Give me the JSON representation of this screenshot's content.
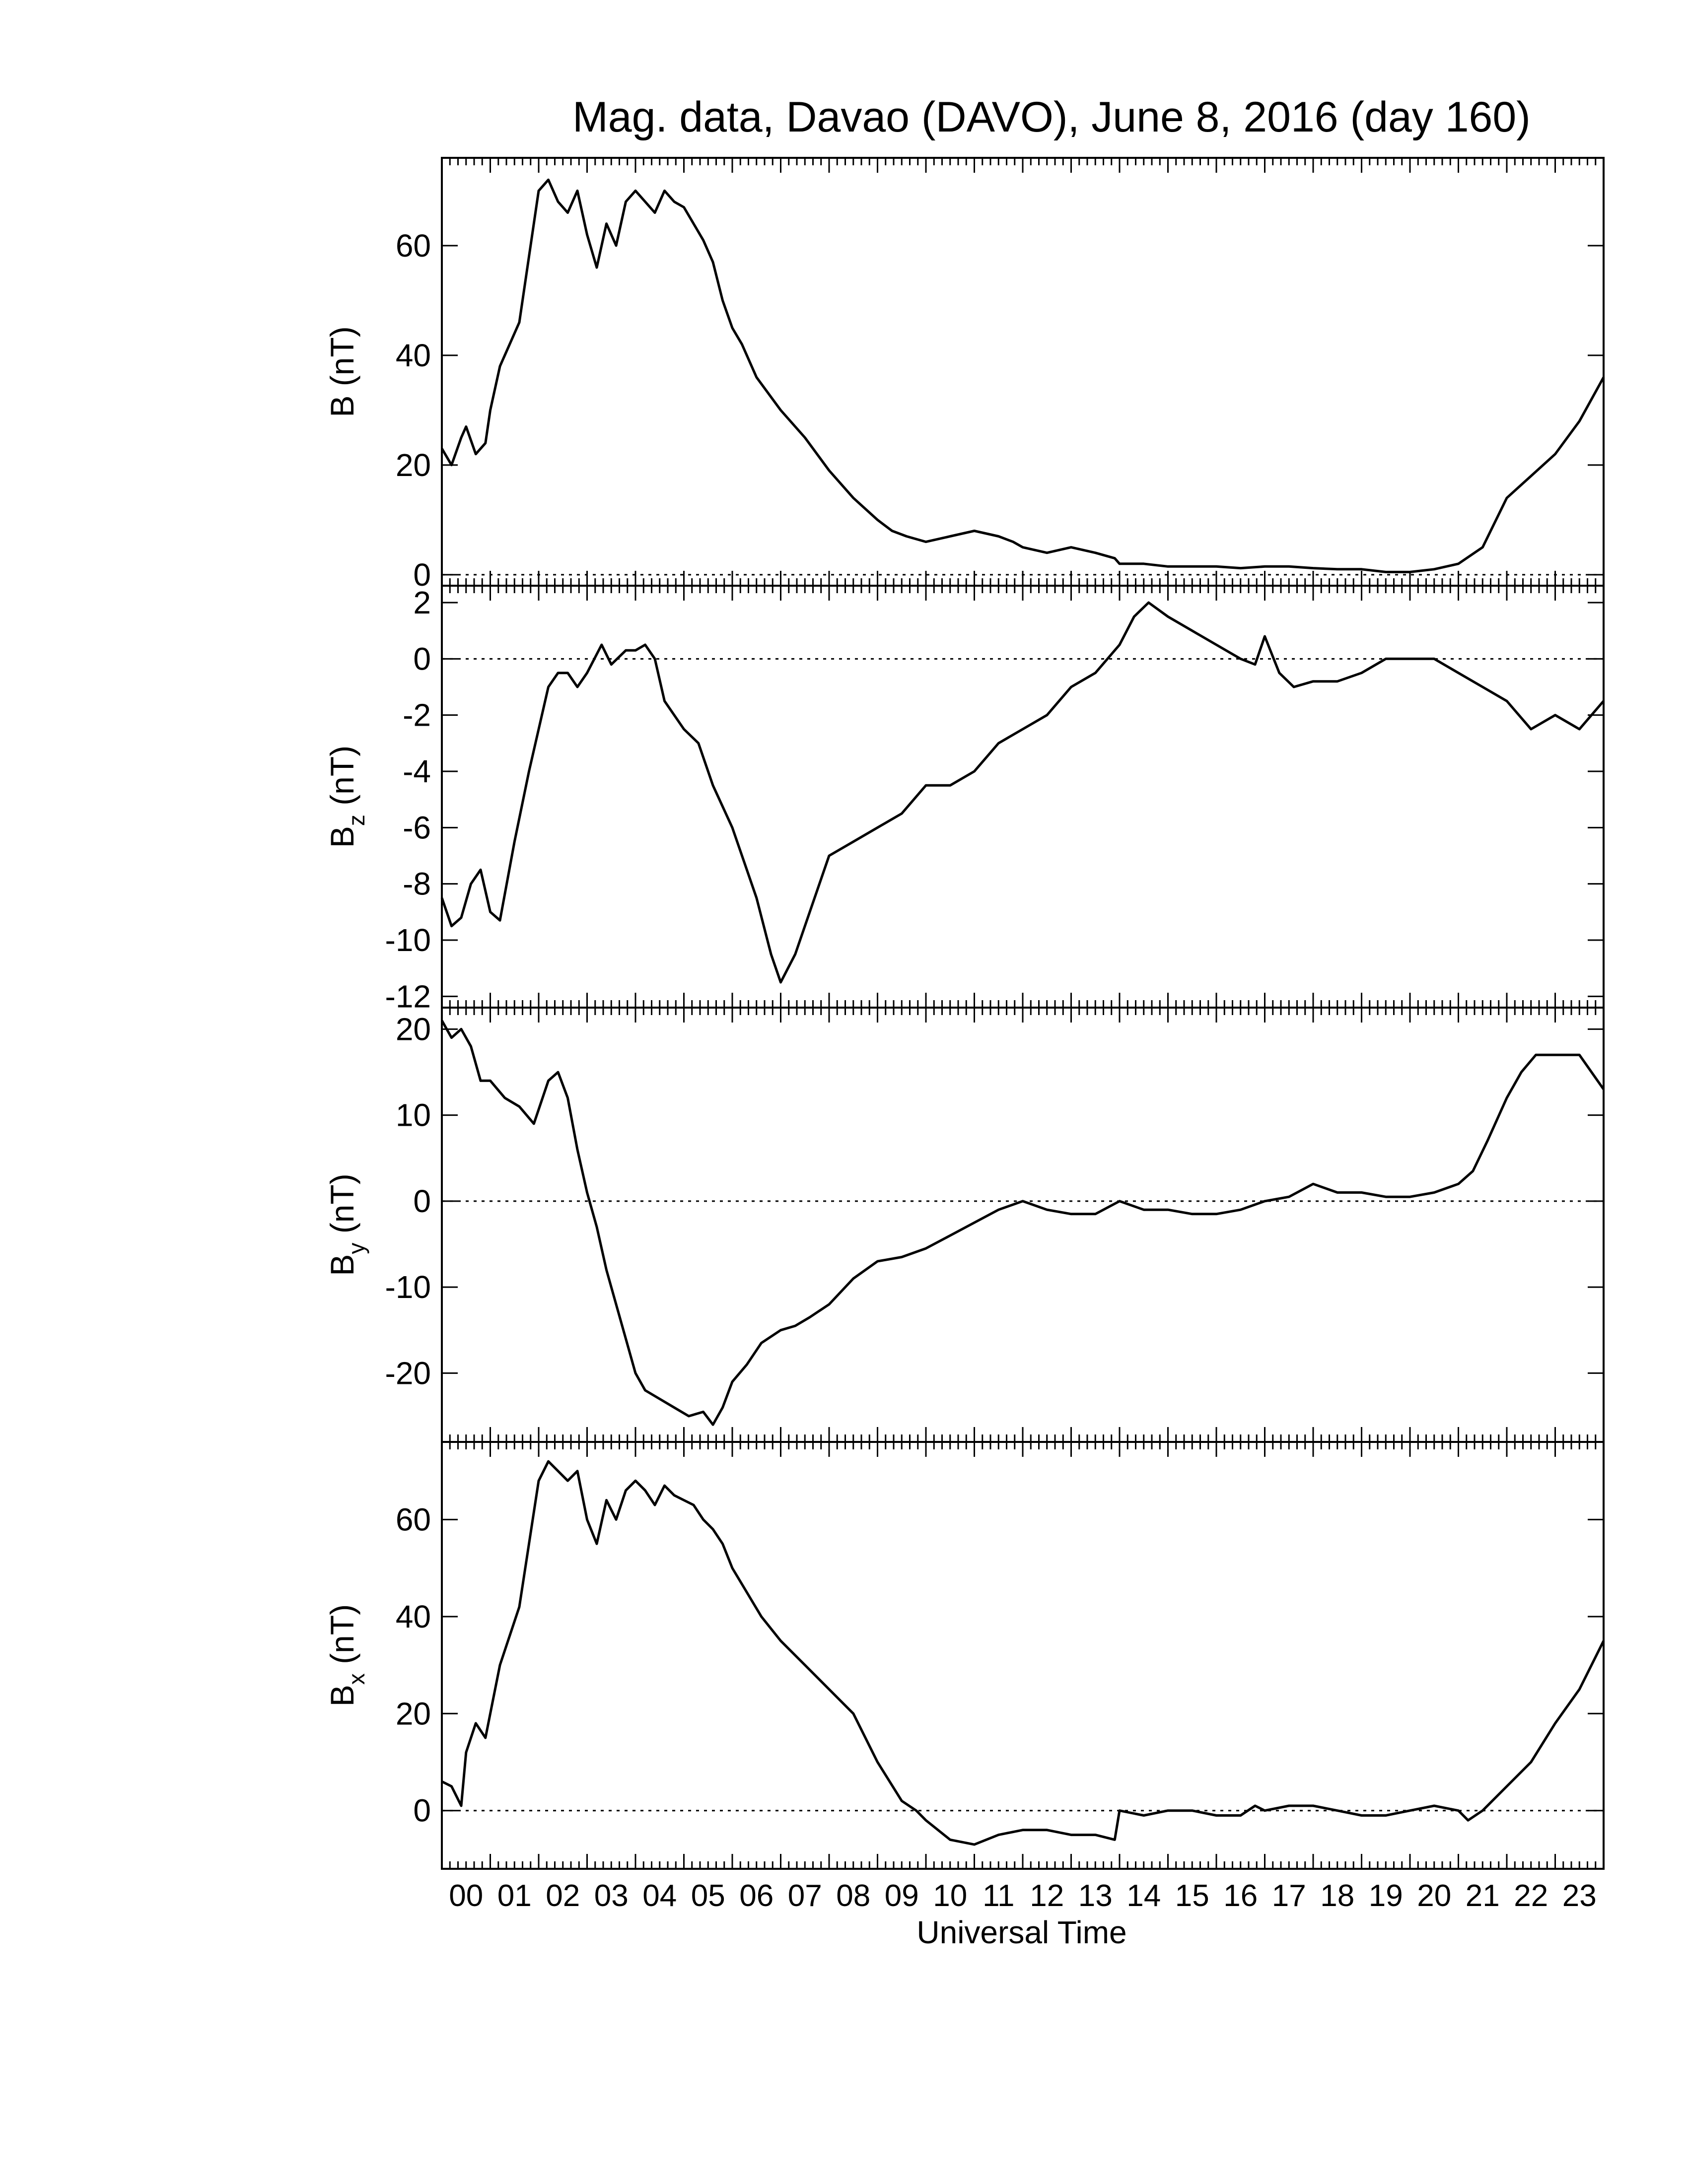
{
  "chart_data": {
    "title": "Mag. data, Davao (DAVO), June 8, 2016 (day 160)",
    "xlabel": "Universal Time",
    "x_ticks": [
      "00",
      "01",
      "02",
      "03",
      "04",
      "05",
      "06",
      "07",
      "08",
      "09",
      "10",
      "11",
      "12",
      "13",
      "14",
      "15",
      "16",
      "17",
      "18",
      "19",
      "20",
      "21",
      "22",
      "23"
    ],
    "x_range": [
      0,
      24
    ],
    "x_unit": "hours UT",
    "line_color": "#000000",
    "zero_line": "dotted",
    "panels": [
      {
        "type": "line",
        "ylabel": "B (nT)",
        "ylabel_main": "B",
        "ylabel_sub": "",
        "ylabel_unit": " (nT)",
        "ylim": [
          -2,
          76
        ],
        "yticks": [
          0,
          20,
          40,
          60
        ],
        "ytick_labels": [
          "0",
          "20",
          "40",
          "60"
        ],
        "series": [
          {
            "x": [
              0,
              0.2,
              0.4,
              0.5,
              0.7,
              0.9,
              1.0,
              1.2,
              1.4,
              1.6,
              1.8,
              2.0,
              2.2,
              2.4,
              2.6,
              2.8,
              3.0,
              3.2,
              3.4,
              3.6,
              3.8,
              4.0,
              4.2,
              4.4,
              4.6,
              4.8,
              5.0,
              5.2,
              5.4,
              5.6,
              5.8,
              6.0,
              6.2,
              6.5,
              7.0,
              7.5,
              8.0,
              8.5,
              9.0,
              9.3,
              9.6,
              10.0,
              10.5,
              11.0,
              11.5,
              11.8,
              12.0,
              12.5,
              13.0,
              13.5,
              13.9,
              14.0,
              14.5,
              15.0,
              15.5,
              16.0,
              16.5,
              17.0,
              17.5,
              18.0,
              18.5,
              19.0,
              19.5,
              20.0,
              20.5,
              21.0,
              21.5,
              22.0,
              22.5,
              23.0,
              23.5,
              24.0
            ],
            "y": [
              23,
              20,
              25,
              27,
              22,
              24,
              30,
              38,
              42,
              46,
              58,
              70,
              72,
              68,
              66,
              70,
              62,
              56,
              64,
              60,
              68,
              70,
              68,
              66,
              70,
              68,
              67,
              64,
              61,
              57,
              50,
              45,
              42,
              36,
              30,
              25,
              19,
              14,
              10,
              8,
              7,
              6,
              7,
              8,
              7,
              6,
              5,
              4,
              5,
              4,
              3,
              2,
              2,
              1.5,
              1.5,
              1.5,
              1.2,
              1.5,
              1.5,
              1.2,
              1,
              1,
              0.5,
              0.5,
              1,
              2,
              5,
              14,
              18,
              22,
              28,
              36
            ]
          }
        ]
      },
      {
        "type": "line",
        "ylabel": "Bz (nT)",
        "ylabel_main": "B",
        "ylabel_sub": "z",
        "ylabel_unit": " (nT)",
        "ylim": [
          -12.4,
          2.6
        ],
        "yticks": [
          -12,
          -10,
          -8,
          -6,
          -4,
          -2,
          0,
          2
        ],
        "ytick_labels": [
          "-12",
          "-10",
          "-8",
          "-6",
          "-4",
          "-2",
          "0",
          "2"
        ],
        "series": [
          {
            "x": [
              0,
              0.2,
              0.4,
              0.6,
              0.8,
              1.0,
              1.2,
              1.5,
              1.8,
              2.0,
              2.2,
              2.4,
              2.6,
              2.8,
              3.0,
              3.3,
              3.5,
              3.8,
              4.0,
              4.2,
              4.4,
              4.6,
              5.0,
              5.3,
              5.6,
              6.0,
              6.3,
              6.5,
              6.8,
              7.0,
              7.3,
              7.6,
              8.0,
              8.5,
              9.0,
              9.5,
              10.0,
              10.5,
              11.0,
              11.5,
              12.0,
              12.5,
              13.0,
              13.5,
              14.0,
              14.3,
              14.6,
              15.0,
              15.5,
              16.0,
              16.5,
              16.8,
              17.0,
              17.3,
              17.6,
              18.0,
              18.5,
              19.0,
              19.5,
              20.0,
              20.5,
              21.0,
              21.5,
              22.0,
              22.5,
              23.0,
              23.5,
              24.0
            ],
            "y": [
              -8.5,
              -9.5,
              -9.2,
              -8.0,
              -7.5,
              -9.0,
              -9.3,
              -6.5,
              -4.0,
              -2.5,
              -1.0,
              -0.5,
              -0.5,
              -1.0,
              -0.5,
              0.5,
              -0.2,
              0.3,
              0.3,
              0.5,
              0.0,
              -1.5,
              -2.5,
              -3.0,
              -4.5,
              -6.0,
              -7.5,
              -8.5,
              -10.5,
              -11.5,
              -10.5,
              -9.0,
              -7.0,
              -6.5,
              -6.0,
              -5.5,
              -4.5,
              -4.5,
              -4.0,
              -3.0,
              -2.5,
              -2.0,
              -1.0,
              -0.5,
              0.5,
              1.5,
              2.0,
              1.5,
              1.0,
              0.5,
              0.0,
              -0.2,
              0.8,
              -0.5,
              -1.0,
              -0.8,
              -0.8,
              -0.5,
              0.0,
              0.0,
              0.0,
              -0.5,
              -1.0,
              -1.5,
              -2.5,
              -2.0,
              -2.5,
              -1.5
            ]
          }
        ]
      },
      {
        "type": "line",
        "ylabel": "By (nT)",
        "ylabel_main": "B",
        "ylabel_sub": "y",
        "ylabel_unit": " (nT)",
        "ylim": [
          -28,
          22.5
        ],
        "yticks": [
          -20,
          -10,
          0,
          10,
          20
        ],
        "ytick_labels": [
          "-20",
          "-10",
          "0",
          "10",
          "20"
        ],
        "series": [
          {
            "x": [
              0,
              0.2,
              0.4,
              0.6,
              0.8,
              1.0,
              1.3,
              1.6,
              1.9,
              2.2,
              2.4,
              2.6,
              2.8,
              3.0,
              3.2,
              3.4,
              3.6,
              3.8,
              4.0,
              4.2,
              4.5,
              4.8,
              5.1,
              5.4,
              5.6,
              5.8,
              6.0,
              6.3,
              6.6,
              7.0,
              7.3,
              7.6,
              8.0,
              8.5,
              9.0,
              9.5,
              10.0,
              10.5,
              11.0,
              11.5,
              12.0,
              12.5,
              13.0,
              13.5,
              14.0,
              14.5,
              15.0,
              15.5,
              16.0,
              16.5,
              17.0,
              17.5,
              18.0,
              18.5,
              19.0,
              19.5,
              20.0,
              20.5,
              21.0,
              21.3,
              21.6,
              22.0,
              22.3,
              22.6,
              23.0,
              23.5,
              24.0
            ],
            "y": [
              21,
              19,
              20,
              18,
              14,
              14,
              12,
              11,
              9,
              14,
              15,
              12,
              6,
              1,
              -3,
              -8,
              -12,
              -16,
              -20,
              -22,
              -23,
              -24,
              -25,
              -24.5,
              -26,
              -24,
              -21,
              -19,
              -16.5,
              -15,
              -14.5,
              -13.5,
              -12,
              -9,
              -7,
              -6.5,
              -5.5,
              -4,
              -2.5,
              -1,
              0,
              -1,
              -1.5,
              -1.5,
              0,
              -1,
              -1,
              -1.5,
              -1.5,
              -1,
              0,
              0.5,
              2,
              1,
              1,
              0.5,
              0.5,
              1,
              2,
              3.5,
              7,
              12,
              15,
              17,
              17,
              17,
              13
            ]
          }
        ]
      },
      {
        "type": "line",
        "ylabel": "Bx (nT)",
        "ylabel_main": "B",
        "ylabel_sub": "x",
        "ylabel_unit": " (nT)",
        "ylim": [
          -12,
          76
        ],
        "yticks": [
          0,
          20,
          40,
          60
        ],
        "ytick_labels": [
          "0",
          "20",
          "40",
          "60"
        ],
        "series": [
          {
            "x": [
              0,
              0.2,
              0.4,
              0.5,
              0.7,
              0.9,
              1.0,
              1.2,
              1.4,
              1.6,
              1.8,
              2.0,
              2.2,
              2.4,
              2.6,
              2.8,
              3.0,
              3.2,
              3.4,
              3.6,
              3.8,
              4.0,
              4.2,
              4.4,
              4.6,
              4.8,
              5.0,
              5.2,
              5.4,
              5.6,
              5.8,
              6.0,
              6.3,
              6.6,
              7.0,
              7.5,
              8.0,
              8.5,
              9.0,
              9.5,
              9.8,
              10.0,
              10.5,
              11.0,
              11.5,
              12.0,
              12.5,
              13.0,
              13.5,
              13.9,
              14.0,
              14.5,
              15.0,
              15.5,
              16.0,
              16.5,
              16.8,
              17.0,
              17.5,
              18.0,
              18.5,
              19.0,
              19.5,
              20.0,
              20.5,
              21.0,
              21.2,
              21.5,
              22.0,
              22.5,
              23.0,
              23.5,
              24.0
            ],
            "y": [
              6,
              5,
              1,
              12,
              18,
              15,
              20,
              30,
              36,
              42,
              55,
              68,
              72,
              70,
              68,
              70,
              60,
              55,
              64,
              60,
              66,
              68,
              66,
              63,
              67,
              65,
              64,
              63,
              60,
              58,
              55,
              50,
              45,
              40,
              35,
              30,
              25,
              20,
              10,
              2,
              0,
              -2,
              -6,
              -7,
              -5,
              -4,
              -4,
              -5,
              -5,
              -6,
              0,
              -1,
              0,
              0,
              -1,
              -1,
              1,
              0,
              1,
              1,
              0,
              -1,
              -1,
              0,
              1,
              0,
              -2,
              0,
              5,
              10,
              18,
              25,
              35
            ]
          }
        ]
      }
    ]
  }
}
